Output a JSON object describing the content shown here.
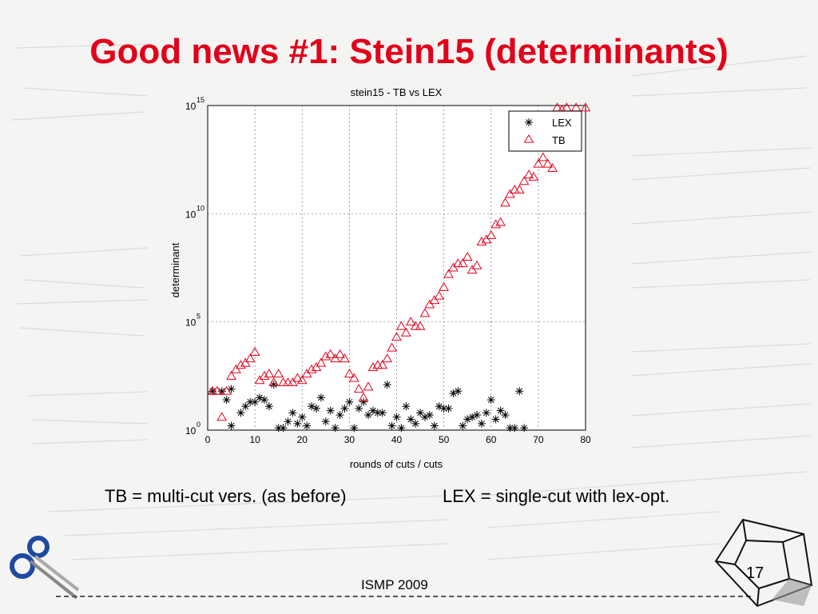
{
  "slide": {
    "title": "Good news #1: Stein15 (determinants)",
    "caption_left": "TB = multi-cut vers. (as before)",
    "caption_right": "LEX = single-cut with lex-opt.",
    "footer": "ISMP 2009",
    "page_number": "17",
    "title_color": "#e2001a"
  },
  "chart_data": {
    "type": "scatter",
    "title": "stein15 - TB vs LEX",
    "xlabel": "rounds of cuts / cuts",
    "ylabel": "determinant",
    "xlim": [
      0,
      80
    ],
    "ylim_log10": [
      0,
      15
    ],
    "y_scale": "log",
    "grid": true,
    "legend_position": "top-right",
    "x_ticks": [
      "0",
      "10",
      "20",
      "30",
      "40",
      "50",
      "60",
      "70",
      "80"
    ],
    "y_ticks": [
      {
        "base": "10",
        "exp": "0",
        "log10": 0
      },
      {
        "base": "10",
        "exp": "5",
        "log10": 5
      },
      {
        "base": "10",
        "exp": "10",
        "log10": 10
      },
      {
        "base": "10",
        "exp": "15",
        "log10": 15
      }
    ],
    "series": [
      {
        "name": "LEX",
        "marker": "asterisk",
        "color": "#000000",
        "points": [
          [
            1,
            1.8
          ],
          [
            3,
            1.8
          ],
          [
            4,
            1.4
          ],
          [
            5,
            1.9
          ],
          [
            5,
            0.2
          ],
          [
            7,
            0.8
          ],
          [
            8,
            1.1
          ],
          [
            9,
            1.3
          ],
          [
            10,
            1.3
          ],
          [
            11,
            1.5
          ],
          [
            12,
            1.4
          ],
          [
            13,
            1.1
          ],
          [
            14,
            2.1
          ],
          [
            15,
            0.1
          ],
          [
            16,
            0.1
          ],
          [
            17,
            0.4
          ],
          [
            18,
            0.8
          ],
          [
            19,
            0.3
          ],
          [
            20,
            0.6
          ],
          [
            21,
            0.2
          ],
          [
            22,
            1.1
          ],
          [
            23,
            1.0
          ],
          [
            24,
            1.5
          ],
          [
            25,
            0.4
          ],
          [
            26,
            0.9
          ],
          [
            27,
            0.1
          ],
          [
            28,
            0.7
          ],
          [
            29,
            1.0
          ],
          [
            30,
            1.3
          ],
          [
            31,
            0.1
          ],
          [
            32,
            1.0
          ],
          [
            33,
            1.3
          ],
          [
            34,
            0.7
          ],
          [
            35,
            0.9
          ],
          [
            36,
            0.8
          ],
          [
            37,
            0.8
          ],
          [
            38,
            2.1
          ],
          [
            39,
            0.2
          ],
          [
            40,
            0.6
          ],
          [
            41,
            0.1
          ],
          [
            42,
            1.1
          ],
          [
            43,
            0.5
          ],
          [
            44,
            0.3
          ],
          [
            45,
            0.8
          ],
          [
            46,
            0.6
          ],
          [
            47,
            0.7
          ],
          [
            48,
            0.2
          ],
          [
            49,
            1.1
          ],
          [
            50,
            1.0
          ],
          [
            51,
            1.0
          ],
          [
            52,
            1.7
          ],
          [
            53,
            1.8
          ],
          [
            54,
            0.2
          ],
          [
            55,
            0.5
          ],
          [
            56,
            0.6
          ],
          [
            57,
            0.7
          ],
          [
            58,
            0.3
          ],
          [
            59,
            0.8
          ],
          [
            60,
            1.4
          ],
          [
            61,
            0.5
          ],
          [
            62,
            0.9
          ],
          [
            63,
            0.7
          ],
          [
            64,
            0.1
          ],
          [
            65,
            0.1
          ],
          [
            66,
            1.8
          ],
          [
            67,
            0.1
          ]
        ]
      },
      {
        "name": "TB",
        "marker": "triangle",
        "color": "#e2001a",
        "points": [
          [
            1,
            1.8
          ],
          [
            2,
            1.8
          ],
          [
            3,
            0.6
          ],
          [
            4,
            1.8
          ],
          [
            5,
            2.5
          ],
          [
            6,
            2.8
          ],
          [
            7,
            3.0
          ],
          [
            8,
            3.1
          ],
          [
            9,
            3.3
          ],
          [
            10,
            3.6
          ],
          [
            11,
            2.3
          ],
          [
            12,
            2.5
          ],
          [
            13,
            2.6
          ],
          [
            14,
            2.2
          ],
          [
            15,
            2.6
          ],
          [
            16,
            2.2
          ],
          [
            17,
            2.2
          ],
          [
            18,
            2.2
          ],
          [
            19,
            2.4
          ],
          [
            20,
            2.3
          ],
          [
            21,
            2.6
          ],
          [
            22,
            2.8
          ],
          [
            23,
            2.9
          ],
          [
            24,
            3.1
          ],
          [
            25,
            3.4
          ],
          [
            26,
            3.5
          ],
          [
            27,
            3.3
          ],
          [
            28,
            3.5
          ],
          [
            29,
            3.3
          ],
          [
            30,
            2.6
          ],
          [
            31,
            2.4
          ],
          [
            32,
            1.9
          ],
          [
            33,
            1.5
          ],
          [
            34,
            2.0
          ],
          [
            35,
            2.9
          ],
          [
            36,
            3.0
          ],
          [
            37,
            3.0
          ],
          [
            38,
            3.3
          ],
          [
            39,
            3.8
          ],
          [
            40,
            4.3
          ],
          [
            41,
            4.8
          ],
          [
            42,
            4.5
          ],
          [
            43,
            5.0
          ],
          [
            44,
            4.8
          ],
          [
            45,
            4.8
          ],
          [
            46,
            5.4
          ],
          [
            47,
            5.8
          ],
          [
            48,
            6.0
          ],
          [
            49,
            6.2
          ],
          [
            50,
            6.6
          ],
          [
            51,
            7.2
          ],
          [
            52,
            7.5
          ],
          [
            53,
            7.7
          ],
          [
            54,
            7.7
          ],
          [
            55,
            8.0
          ],
          [
            56,
            7.4
          ],
          [
            57,
            7.6
          ],
          [
            58,
            8.7
          ],
          [
            59,
            8.8
          ],
          [
            60,
            9.0
          ],
          [
            61,
            9.5
          ],
          [
            62,
            9.6
          ],
          [
            63,
            10.5
          ],
          [
            64,
            10.9
          ],
          [
            65,
            11.1
          ],
          [
            66,
            11.1
          ],
          [
            67,
            11.5
          ],
          [
            68,
            11.8
          ],
          [
            69,
            11.7
          ],
          [
            70,
            12.3
          ],
          [
            71,
            12.6
          ],
          [
            72,
            12.3
          ],
          [
            73,
            12.1
          ],
          [
            74,
            14.9
          ],
          [
            75,
            14.8
          ],
          [
            76,
            14.9
          ],
          [
            78,
            14.9
          ],
          [
            80,
            14.9
          ]
        ]
      }
    ]
  }
}
